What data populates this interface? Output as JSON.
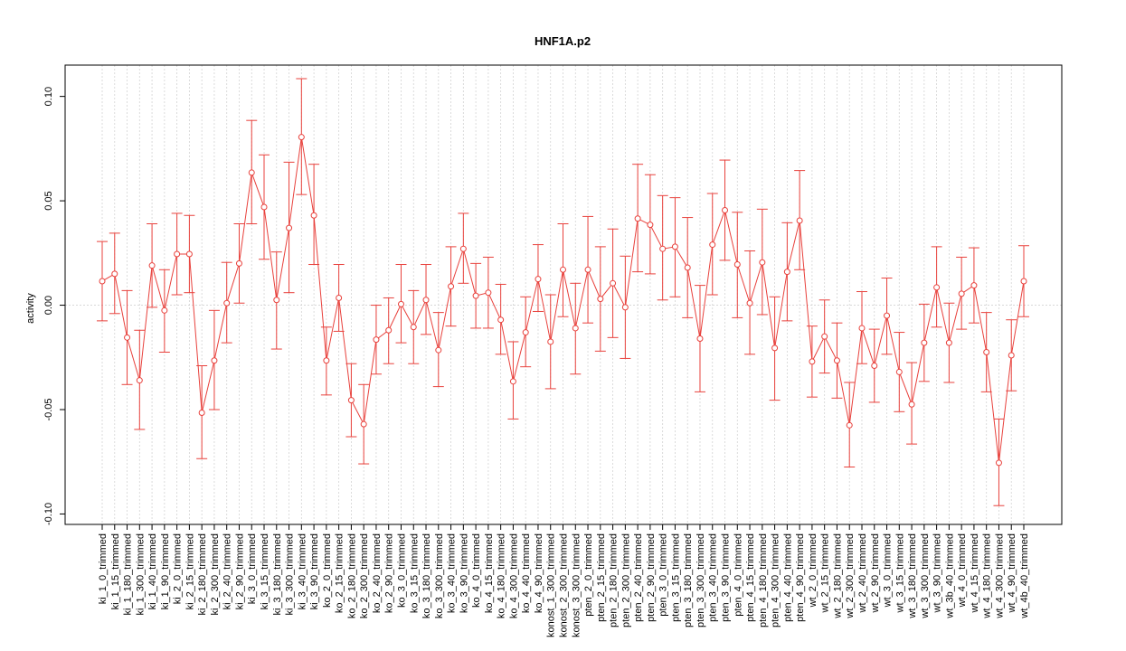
{
  "chart_data": {
    "type": "line",
    "title": "HNF1A.p2",
    "xlabel": "",
    "ylabel": "activity",
    "ylim": [
      -0.105,
      0.115
    ],
    "yticks": [
      -0.1,
      -0.05,
      0.0,
      0.05,
      0.1
    ],
    "ytick_labels": [
      "-0.10",
      "-0.05",
      "0.00",
      "0.05",
      "0.10"
    ],
    "grid": true,
    "reference_line": 0,
    "colors": {
      "series": "#e8413c",
      "grid": "#d3d3d3",
      "axis": "#000000"
    },
    "categories": [
      "ki_1_0_trimmed",
      "ki_1_15_trimmed",
      "ki_1_180_trimmed",
      "ki_1_300_trimmed",
      "ki_1_40_trimmed",
      "ki_1_90_trimmed",
      "ki_2_0_trimmed",
      "ki_2_15_trimmed",
      "ki_2_180_trimmed",
      "ki_2_300_trimmed",
      "ki_2_40_trimmed",
      "ki_2_90_trimmed",
      "ki_3_0_trimmed",
      "ki_3_15_trimmed",
      "ki_3_180_trimmed",
      "ki_3_300_trimmed",
      "ki_3_40_trimmed",
      "ki_3_90_trimmed",
      "ko_2_0_trimmed",
      "ko_2_15_trimmed",
      "ko_2_180_trimmed",
      "ko_2_300_trimmed",
      "ko_2_40_trimmed",
      "ko_2_90_trimmed",
      "ko_3_0_trimmed",
      "ko_3_15_trimmed",
      "ko_3_180_trimmed",
      "ko_3_300_trimmed",
      "ko_3_40_trimmed",
      "ko_3_90_trimmed",
      "ko_4_0_trimmed",
      "ko_4_15_trimmed",
      "ko_4_180_trimmed",
      "ko_4_300_trimmed",
      "ko_4_40_trimmed",
      "ko_4_90_trimmed",
      "konost_1_300_trimmed",
      "konost_2_300_trimmed",
      "konost_3_300_trimmed",
      "pten_2_0_trimmed",
      "pten_2_15_trimmed",
      "pten_2_180_trimmed",
      "pten_2_300_trimmed",
      "pten_2_40_trimmed",
      "pten_2_90_trimmed",
      "pten_3_0_trimmed",
      "pten_3_15_trimmed",
      "pten_3_180_trimmed",
      "pten_3_300_trimmed",
      "pten_3_40_trimmed",
      "pten_3_90_trimmed",
      "pten_4_0_trimmed",
      "pten_4_15_trimmed",
      "pten_4_180_trimmed",
      "pten_4_300_trimmed",
      "pten_4_40_trimmed",
      "pten_4_90_trimmed",
      "wt_2_0_trimmed",
      "wt_2_15_trimmed",
      "wt_2_180_trimmed",
      "wt_2_300_trimmed",
      "wt_2_40_trimmed",
      "wt_2_90_trimmed",
      "wt_3_0_trimmed",
      "wt_3_15_trimmed",
      "wt_3_180_trimmed",
      "wt_3_300_trimmed",
      "wt_3_90_trimmed",
      "wt_3b_40_trimmed",
      "wt_4_0_trimmed",
      "wt_4_15_trimmed",
      "wt_4_180_trimmed",
      "wt_4_300_trimmed",
      "wt_4_90_trimmed",
      "wt_4b_40_trimmed"
    ],
    "series": [
      {
        "values": [
          0.0115,
          0.015,
          -0.0155,
          -0.036,
          0.019,
          -0.0025,
          0.0245,
          0.0245,
          -0.0515,
          -0.0265,
          0.001,
          0.02,
          0.0635,
          0.047,
          0.0025,
          0.037,
          0.0805,
          0.043,
          -0.0265,
          0.0035,
          -0.0455,
          -0.057,
          -0.0165,
          -0.012,
          0.0005,
          -0.0105,
          0.0025,
          -0.0215,
          0.009,
          0.027,
          0.0045,
          0.006,
          -0.007,
          -0.0365,
          -0.013,
          0.0125,
          -0.0175,
          0.017,
          -0.011,
          0.017,
          0.003,
          0.0105,
          -0.001,
          0.0415,
          0.0385,
          0.027,
          0.028,
          0.018,
          -0.016,
          0.029,
          0.0455,
          0.0195,
          0.001,
          0.0205,
          -0.0205,
          0.016,
          0.0405,
          -0.027,
          -0.015,
          -0.0265,
          -0.0575,
          -0.011,
          -0.029,
          -0.005,
          -0.032,
          -0.0475,
          -0.018,
          0.0085,
          -0.018,
          0.0055,
          0.0095,
          -0.0225,
          -0.0755,
          -0.024,
          0.0115
        ],
        "upper": [
          0.0305,
          0.0345,
          0.007,
          -0.012,
          0.039,
          0.017,
          0.044,
          0.043,
          -0.029,
          -0.0025,
          0.0205,
          0.039,
          0.0885,
          0.072,
          0.0255,
          0.0685,
          0.1085,
          0.0675,
          -0.0105,
          0.0195,
          -0.028,
          -0.038,
          0.0,
          0.0035,
          0.0195,
          0.007,
          0.0195,
          -0.0035,
          0.028,
          0.044,
          0.02,
          0.023,
          0.01,
          -0.0175,
          0.004,
          0.029,
          0.005,
          0.039,
          0.0105,
          0.0425,
          0.028,
          0.0365,
          0.0235,
          0.0675,
          0.0625,
          0.0525,
          0.0515,
          0.042,
          0.0095,
          0.0535,
          0.0695,
          0.0445,
          0.026,
          0.046,
          0.004,
          0.0395,
          0.0645,
          -0.01,
          0.0025,
          -0.0085,
          -0.037,
          0.0065,
          -0.0115,
          0.013,
          -0.013,
          -0.0275,
          0.0005,
          0.028,
          0.001,
          0.023,
          0.0275,
          -0.0035,
          -0.0545,
          -0.007,
          0.0285
        ],
        "lower": [
          -0.0075,
          -0.004,
          -0.038,
          -0.0595,
          -0.001,
          -0.0225,
          0.005,
          0.006,
          -0.0735,
          -0.05,
          -0.018,
          0.001,
          0.039,
          0.022,
          -0.021,
          0.006,
          0.053,
          0.0195,
          -0.043,
          -0.0125,
          -0.063,
          -0.076,
          -0.033,
          -0.028,
          -0.018,
          -0.028,
          -0.014,
          -0.039,
          -0.01,
          0.0105,
          -0.011,
          -0.011,
          -0.0235,
          -0.0545,
          -0.0295,
          -0.003,
          -0.04,
          -0.0055,
          -0.033,
          -0.0085,
          -0.022,
          -0.0155,
          -0.0255,
          0.016,
          0.015,
          0.0025,
          0.004,
          -0.006,
          -0.0415,
          0.005,
          0.0215,
          -0.006,
          -0.0235,
          -0.0045,
          -0.0455,
          -0.0075,
          0.017,
          -0.044,
          -0.0325,
          -0.0445,
          -0.0775,
          -0.028,
          -0.0465,
          -0.0235,
          -0.051,
          -0.0665,
          -0.0365,
          -0.0105,
          -0.037,
          -0.0115,
          -0.0085,
          -0.0415,
          -0.096,
          -0.041,
          -0.0055
        ]
      }
    ]
  }
}
